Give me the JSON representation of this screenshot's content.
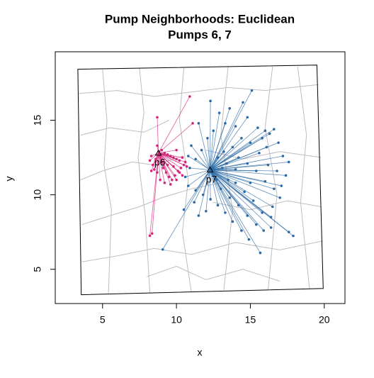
{
  "chart_data": {
    "type": "neighborhood",
    "title": "Pump Neighborhoods: Euclidean",
    "subtitle": "Pumps 6, 7",
    "x_label": "x",
    "y_label": "y",
    "xlim": [
      1.8,
      21.4
    ],
    "ylim": [
      2.7,
      19.6
    ],
    "xticks": [
      5,
      10,
      15,
      20
    ],
    "yticks": [
      5,
      10,
      15
    ],
    "street_color": "#bdbdbd",
    "frame": {
      "x": [
        3.33,
        19.5,
        19.93,
        3.56
      ],
      "y": [
        18.43,
        18.71,
        3.71,
        3.29
      ]
    },
    "streets": [
      {
        "x": [
          3.4,
          6.0,
          8.5,
          11.0,
          13.5,
          16.0,
          19.6
        ],
        "y": [
          16.8,
          17.0,
          16.6,
          16.9,
          17.2,
          17.0,
          17.4
        ]
      },
      {
        "x": [
          3.5,
          5.5,
          7.8,
          9.5
        ],
        "y": [
          14.0,
          14.5,
          14.2,
          15.0
        ]
      },
      {
        "x": [
          3.5,
          5.0,
          7.0,
          8.5,
          10.5
        ],
        "y": [
          11.0,
          11.6,
          12.2,
          12.0,
          12.6
        ]
      },
      {
        "x": [
          3.6,
          5.5,
          7.5,
          9.0,
          11.0,
          13.0
        ],
        "y": [
          8.0,
          8.6,
          9.2,
          9.8,
          10.4,
          10.8
        ]
      },
      {
        "x": [
          3.6,
          6.0,
          8.5,
          11.0,
          14.0,
          17.0,
          19.9
        ],
        "y": [
          5.5,
          5.9,
          6.4,
          6.0,
          6.8,
          6.3,
          6.9
        ]
      },
      {
        "x": [
          5.0,
          5.3,
          5.1,
          5.6,
          5.4
        ],
        "y": [
          18.4,
          15.0,
          12.0,
          9.0,
          3.4
        ]
      },
      {
        "x": [
          7.5,
          7.8,
          7.4,
          7.9,
          8.2
        ],
        "y": [
          18.5,
          15.5,
          12.5,
          8.5,
          3.4
        ]
      },
      {
        "x": [
          10.5,
          10.2,
          10.8,
          10.4,
          11.0
        ],
        "y": [
          18.5,
          15.0,
          11.0,
          7.5,
          3.5
        ]
      },
      {
        "x": [
          13.5,
          13.0,
          13.8,
          13.2
        ],
        "y": [
          18.6,
          14.0,
          9.0,
          3.6
        ]
      },
      {
        "x": [
          16.5,
          16.0,
          16.8,
          16.2
        ],
        "y": [
          18.6,
          14.5,
          10.0,
          3.6
        ]
      },
      {
        "x": [
          18.2,
          18.8,
          18.4,
          19.0
        ],
        "y": [
          18.6,
          14.0,
          9.5,
          3.7
        ]
      },
      {
        "x": [
          12.0,
          14.5,
          17.0,
          19.8
        ],
        "y": [
          13.0,
          12.4,
          12.9,
          12.5
        ]
      },
      {
        "x": [
          12.5,
          15.0,
          17.5,
          19.8
        ],
        "y": [
          9.5,
          9.0,
          9.6,
          9.2
        ]
      },
      {
        "x": [
          8.0,
          10.0,
          12.0,
          14.5,
          17.0
        ],
        "y": [
          4.5,
          5.2,
          4.3,
          5.0,
          4.2
        ]
      }
    ],
    "series": [
      {
        "name": "p6",
        "color": "#d6247b",
        "pump_x": 8.78,
        "pump_y": 12.8,
        "x": [
          8.8,
          9.0,
          9.2,
          9.4,
          9.6,
          9.8,
          10.0,
          10.2,
          10.4,
          10.6,
          8.6,
          8.4,
          8.3,
          9.1,
          9.3,
          9.5,
          9.7,
          9.9,
          10.1,
          10.3,
          10.5,
          10.7,
          8.9,
          9.2,
          9.6,
          10.0,
          10.4,
          8.7,
          9.0,
          9.4,
          9.8,
          10.2,
          8.5,
          8.3,
          8.2,
          8.7,
          10.9,
          11.1,
          8.7,
          8.35,
          8.2,
          10.0
        ],
        "y": [
          12.9,
          13.0,
          12.8,
          12.7,
          12.6,
          12.5,
          12.4,
          12.3,
          12.5,
          12.2,
          12.4,
          12.0,
          11.6,
          11.8,
          11.5,
          11.2,
          11.0,
          11.3,
          11.6,
          11.8,
          12.0,
          11.9,
          11.0,
          10.8,
          10.7,
          11.0,
          11.3,
          11.5,
          12.2,
          12.0,
          11.9,
          11.5,
          11.7,
          12.6,
          12.3,
          13.3,
          16.6,
          14.8,
          15.2,
          7.4,
          7.25,
          13.0
        ]
      },
      {
        "name": "p7",
        "color": "#2b6aa6",
        "pump_x": 12.27,
        "pump_y": 11.67,
        "x": [
          15.1,
          14.5,
          13.6,
          12.9,
          13.3,
          14.0,
          14.8,
          15.5,
          16.0,
          16.6,
          16.3,
          15.8,
          16.9,
          17.2,
          17.6,
          17.4,
          16.8,
          16.2,
          15.6,
          15.0,
          14.4,
          13.8,
          13.2,
          14.2,
          14.8,
          15.4,
          16.0,
          16.6,
          17.0,
          16.5,
          15.8,
          15.2,
          14.6,
          14.0,
          13.5,
          13.0,
          13.6,
          14.2,
          14.8,
          15.4,
          15.9,
          16.4,
          17.9,
          17.6,
          15.67,
          14.9,
          14.4,
          13.8,
          13.3,
          12.8,
          12.3,
          11.8,
          11.3,
          10.8,
          11.2,
          10.5,
          11.5,
          12.0,
          9.07,
          10.6,
          10.9,
          11.3,
          11.7,
          12.1,
          12.5,
          11.5,
          12.3,
          10.8,
          11.0,
          12.8,
          13.4,
          14.0,
          12.7,
          13.1,
          16.1,
          15.0,
          16.4,
          17.1
        ],
        "y": [
          17.0,
          16.2,
          15.8,
          15.5,
          14.8,
          14.6,
          15.2,
          14.5,
          14.3,
          14.4,
          14.1,
          13.8,
          13.5,
          12.6,
          12.2,
          11.3,
          11.6,
          12.0,
          12.8,
          13.5,
          13.8,
          13.2,
          12.9,
          12.5,
          12.1,
          11.6,
          10.9,
          10.4,
          9.8,
          9.2,
          8.8,
          9.6,
          10.2,
          10.8,
          11.0,
          10.4,
          9.8,
          9.3,
          8.6,
          8.0,
          7.6,
          7.8,
          7.24,
          7.5,
          6.1,
          7.0,
          7.6,
          8.2,
          8.8,
          9.3,
          9.7,
          10.0,
          10.3,
          10.6,
          9.5,
          9.0,
          8.6,
          8.9,
          6.33,
          11.2,
          11.8,
          12.4,
          13.0,
          13.8,
          14.3,
          14.8,
          16.3,
          12.6,
          13.3,
          12.5,
          12.1,
          11.7,
          11.0,
          11.8,
          13.2,
          10.8,
          8.5,
          10.6
        ]
      }
    ]
  }
}
